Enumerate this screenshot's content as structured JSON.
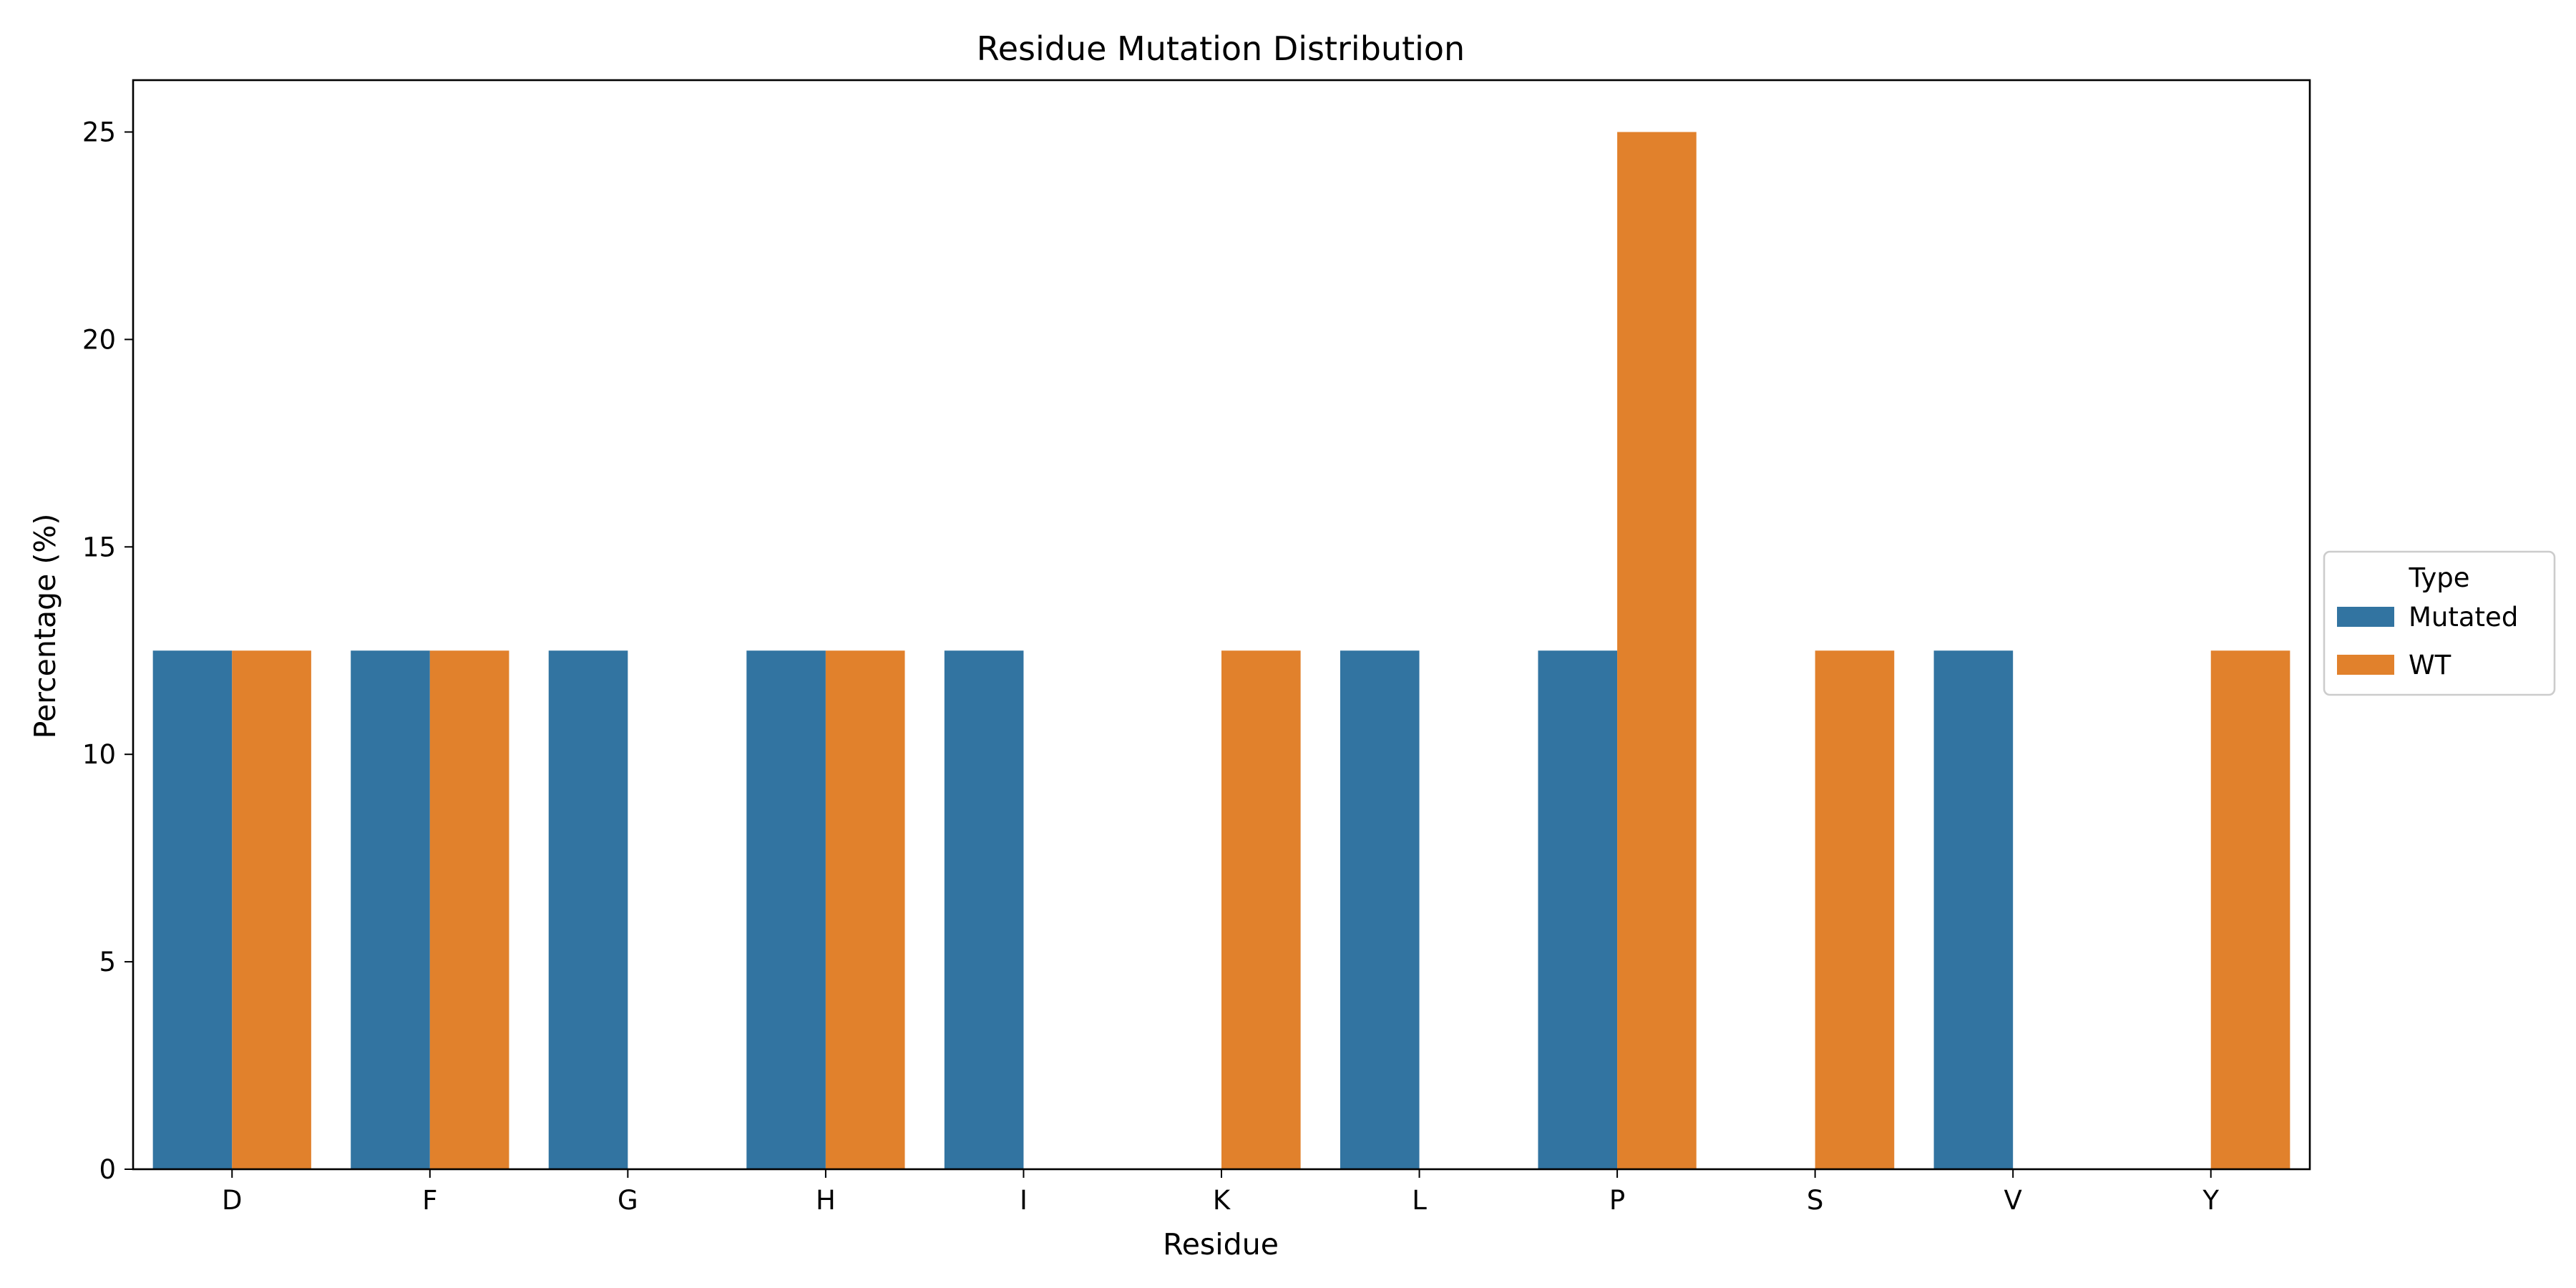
{
  "chart_data": {
    "type": "bar",
    "title": "Residue Mutation Distribution",
    "xlabel": "Residue",
    "ylabel": "Percentage (%)",
    "categories": [
      "D",
      "F",
      "G",
      "H",
      "I",
      "K",
      "L",
      "P",
      "S",
      "V",
      "Y"
    ],
    "series": [
      {
        "name": "Mutated",
        "color": "#3274a1",
        "values": [
          12.5,
          12.5,
          12.5,
          12.5,
          12.5,
          null,
          12.5,
          12.5,
          null,
          12.5,
          null
        ]
      },
      {
        "name": "WT",
        "color": "#e1812c",
        "values": [
          12.5,
          12.5,
          null,
          12.5,
          null,
          12.5,
          null,
          25,
          12.5,
          null,
          12.5
        ]
      }
    ],
    "ylim": [
      0,
      26.25
    ],
    "yticks": [
      0,
      5,
      10,
      15,
      20,
      25
    ],
    "grid": false,
    "legend": {
      "title": "Type",
      "placement": "outside-right"
    }
  }
}
